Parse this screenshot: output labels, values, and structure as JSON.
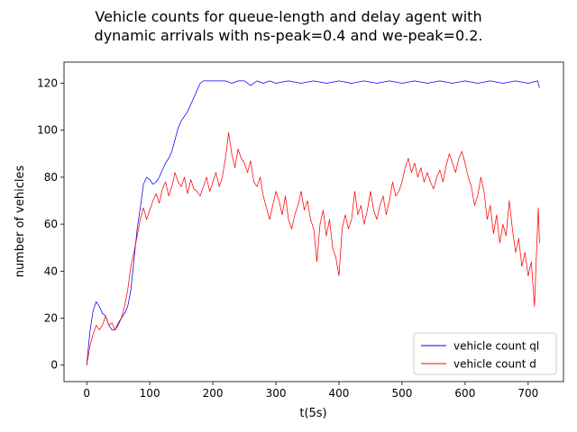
{
  "chart_data": {
    "type": "line",
    "title": [
      "Vehicle counts for queue-length and delay agent with",
      "dynamic arrivals with ns-peak=0.4 and we-peak=0.2."
    ],
    "xlabel": "t(5s)",
    "ylabel": "number of vehicles",
    "xlim": [
      -36,
      756
    ],
    "ylim": [
      -7,
      129
    ],
    "xticks": [
      0,
      100,
      200,
      300,
      400,
      500,
      600,
      700
    ],
    "yticks": [
      0,
      20,
      40,
      60,
      80,
      100,
      120
    ],
    "grid": false,
    "legend_position": "lower-right",
    "series": [
      {
        "name": "vehicle count ql",
        "color": "#0000ff",
        "points": [
          [
            0,
            0
          ],
          [
            5,
            14
          ],
          [
            10,
            23
          ],
          [
            15,
            27
          ],
          [
            20,
            25
          ],
          [
            25,
            22
          ],
          [
            30,
            21
          ],
          [
            35,
            17
          ],
          [
            40,
            15
          ],
          [
            45,
            15
          ],
          [
            50,
            18
          ],
          [
            55,
            20
          ],
          [
            60,
            22
          ],
          [
            65,
            25
          ],
          [
            70,
            32
          ],
          [
            75,
            45
          ],
          [
            80,
            58
          ],
          [
            85,
            67
          ],
          [
            90,
            77
          ],
          [
            95,
            80
          ],
          [
            100,
            79
          ],
          [
            105,
            77
          ],
          [
            110,
            78
          ],
          [
            115,
            80
          ],
          [
            120,
            83
          ],
          [
            125,
            86
          ],
          [
            130,
            88
          ],
          [
            135,
            91
          ],
          [
            140,
            96
          ],
          [
            145,
            101
          ],
          [
            150,
            104
          ],
          [
            155,
            106
          ],
          [
            160,
            108
          ],
          [
            165,
            111
          ],
          [
            170,
            114
          ],
          [
            175,
            117
          ],
          [
            180,
            120
          ],
          [
            185,
            121
          ],
          [
            190,
            121
          ],
          [
            200,
            121
          ],
          [
            210,
            121
          ],
          [
            220,
            121
          ],
          [
            230,
            120
          ],
          [
            240,
            121
          ],
          [
            250,
            121
          ],
          [
            260,
            119
          ],
          [
            270,
            121
          ],
          [
            280,
            120
          ],
          [
            290,
            121
          ],
          [
            300,
            120
          ],
          [
            320,
            121
          ],
          [
            340,
            120
          ],
          [
            360,
            121
          ],
          [
            380,
            120
          ],
          [
            400,
            121
          ],
          [
            420,
            120
          ],
          [
            440,
            121
          ],
          [
            460,
            120
          ],
          [
            480,
            121
          ],
          [
            500,
            120
          ],
          [
            520,
            121
          ],
          [
            540,
            120
          ],
          [
            560,
            121
          ],
          [
            580,
            120
          ],
          [
            600,
            121
          ],
          [
            620,
            120
          ],
          [
            640,
            121
          ],
          [
            660,
            120
          ],
          [
            680,
            121
          ],
          [
            700,
            120
          ],
          [
            715,
            121
          ],
          [
            718,
            118
          ]
        ]
      },
      {
        "name": "vehicle count d",
        "color": "#ff0000",
        "points": [
          [
            0,
            0
          ],
          [
            5,
            8
          ],
          [
            10,
            13
          ],
          [
            15,
            17
          ],
          [
            20,
            15
          ],
          [
            25,
            17
          ],
          [
            30,
            21
          ],
          [
            35,
            17
          ],
          [
            40,
            18
          ],
          [
            45,
            15
          ],
          [
            50,
            17
          ],
          [
            55,
            20
          ],
          [
            60,
            25
          ],
          [
            65,
            32
          ],
          [
            70,
            42
          ],
          [
            75,
            48
          ],
          [
            80,
            55
          ],
          [
            85,
            62
          ],
          [
            90,
            67
          ],
          [
            95,
            62
          ],
          [
            100,
            66
          ],
          [
            105,
            70
          ],
          [
            110,
            73
          ],
          [
            115,
            69
          ],
          [
            120,
            75
          ],
          [
            125,
            78
          ],
          [
            130,
            72
          ],
          [
            135,
            76
          ],
          [
            140,
            82
          ],
          [
            145,
            78
          ],
          [
            150,
            76
          ],
          [
            155,
            80
          ],
          [
            160,
            73
          ],
          [
            165,
            79
          ],
          [
            170,
            75
          ],
          [
            175,
            74
          ],
          [
            180,
            72
          ],
          [
            185,
            76
          ],
          [
            190,
            80
          ],
          [
            195,
            74
          ],
          [
            200,
            78
          ],
          [
            205,
            82
          ],
          [
            210,
            76
          ],
          [
            215,
            80
          ],
          [
            220,
            88
          ],
          [
            225,
            99
          ],
          [
            230,
            90
          ],
          [
            235,
            84
          ],
          [
            240,
            92
          ],
          [
            245,
            88
          ],
          [
            250,
            86
          ],
          [
            255,
            82
          ],
          [
            260,
            87
          ],
          [
            265,
            78
          ],
          [
            270,
            76
          ],
          [
            275,
            80
          ],
          [
            280,
            72
          ],
          [
            285,
            67
          ],
          [
            290,
            62
          ],
          [
            295,
            68
          ],
          [
            300,
            74
          ],
          [
            305,
            70
          ],
          [
            310,
            64
          ],
          [
            315,
            72
          ],
          [
            320,
            62
          ],
          [
            325,
            58
          ],
          [
            330,
            64
          ],
          [
            335,
            68
          ],
          [
            340,
            74
          ],
          [
            345,
            66
          ],
          [
            350,
            70
          ],
          [
            355,
            62
          ],
          [
            360,
            58
          ],
          [
            365,
            44
          ],
          [
            370,
            60
          ],
          [
            375,
            66
          ],
          [
            380,
            55
          ],
          [
            385,
            62
          ],
          [
            390,
            50
          ],
          [
            395,
            46
          ],
          [
            400,
            38
          ],
          [
            405,
            58
          ],
          [
            410,
            64
          ],
          [
            415,
            58
          ],
          [
            420,
            62
          ],
          [
            425,
            74
          ],
          [
            430,
            64
          ],
          [
            435,
            68
          ],
          [
            440,
            60
          ],
          [
            445,
            66
          ],
          [
            450,
            74
          ],
          [
            455,
            66
          ],
          [
            460,
            62
          ],
          [
            465,
            68
          ],
          [
            470,
            72
          ],
          [
            475,
            64
          ],
          [
            480,
            70
          ],
          [
            485,
            78
          ],
          [
            490,
            72
          ],
          [
            495,
            74
          ],
          [
            500,
            78
          ],
          [
            505,
            84
          ],
          [
            510,
            88
          ],
          [
            515,
            82
          ],
          [
            520,
            86
          ],
          [
            525,
            80
          ],
          [
            530,
            84
          ],
          [
            535,
            78
          ],
          [
            540,
            82
          ],
          [
            545,
            78
          ],
          [
            550,
            75
          ],
          [
            555,
            80
          ],
          [
            560,
            83
          ],
          [
            565,
            78
          ],
          [
            570,
            85
          ],
          [
            575,
            90
          ],
          [
            580,
            86
          ],
          [
            585,
            82
          ],
          [
            590,
            88
          ],
          [
            595,
            91
          ],
          [
            600,
            86
          ],
          [
            605,
            80
          ],
          [
            610,
            76
          ],
          [
            615,
            68
          ],
          [
            620,
            72
          ],
          [
            625,
            80
          ],
          [
            630,
            74
          ],
          [
            635,
            62
          ],
          [
            640,
            68
          ],
          [
            645,
            56
          ],
          [
            650,
            64
          ],
          [
            655,
            52
          ],
          [
            660,
            60
          ],
          [
            665,
            55
          ],
          [
            670,
            70
          ],
          [
            675,
            58
          ],
          [
            680,
            48
          ],
          [
            685,
            54
          ],
          [
            690,
            42
          ],
          [
            695,
            48
          ],
          [
            700,
            38
          ],
          [
            705,
            44
          ],
          [
            710,
            25
          ],
          [
            713,
            46
          ],
          [
            716,
            67
          ],
          [
            718,
            52
          ]
        ]
      }
    ]
  }
}
